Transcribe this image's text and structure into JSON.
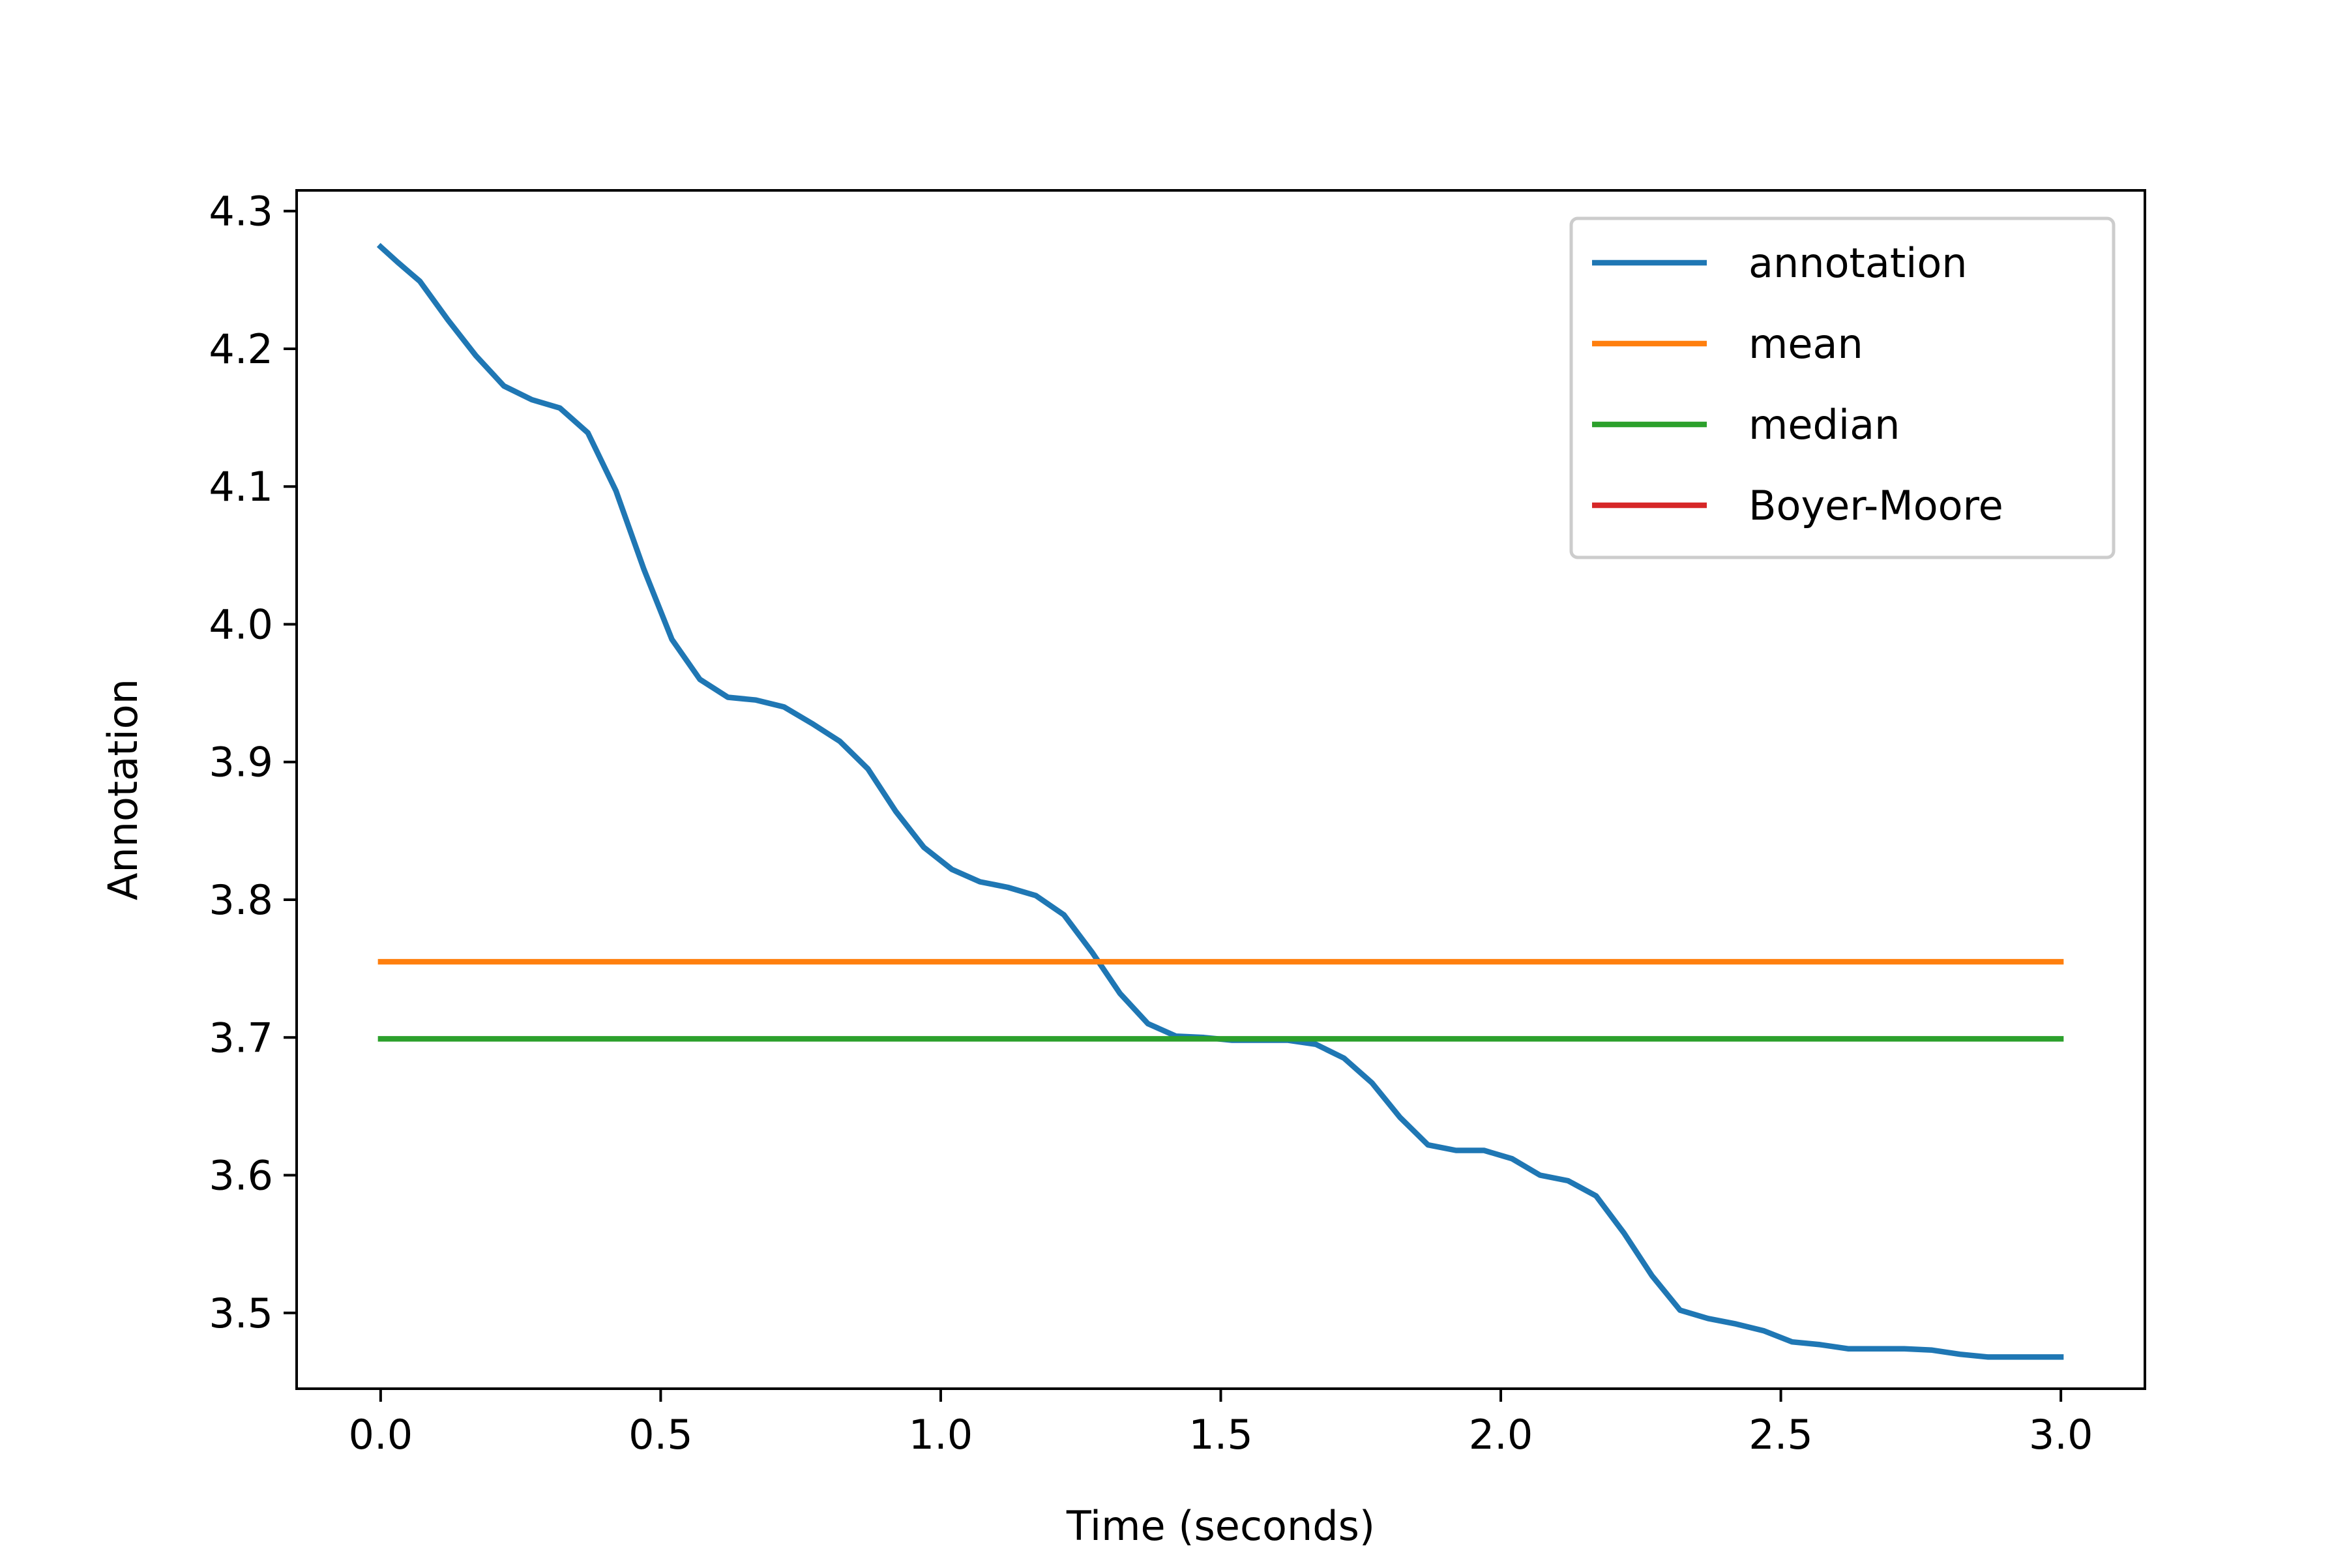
{
  "chart_data": {
    "type": "line",
    "xlabel": "Time (seconds)",
    "ylabel": "Annotation",
    "xlim": [
      -0.15,
      3.15
    ],
    "ylim": [
      3.445,
      4.315
    ],
    "xticks": [
      0.0,
      0.5,
      1.0,
      1.5,
      2.0,
      2.5,
      3.0
    ],
    "xtick_labels": [
      "0.0",
      "0.5",
      "1.0",
      "1.5",
      "2.0",
      "2.5",
      "3.0"
    ],
    "yticks": [
      3.5,
      3.6,
      3.7,
      3.8,
      3.9,
      4.0,
      4.1,
      4.2,
      4.3
    ],
    "ytick_labels": [
      "3.5",
      "3.6",
      "3.7",
      "3.8",
      "3.9",
      "4.0",
      "4.1",
      "4.2",
      "4.3"
    ],
    "grid": false,
    "legend_position": "top-right",
    "series": [
      {
        "name": "annotation",
        "color": "#1f77b4",
        "x": [
          0.0,
          0.03,
          0.07,
          0.12,
          0.17,
          0.22,
          0.27,
          0.32,
          0.37,
          0.42,
          0.47,
          0.52,
          0.57,
          0.62,
          0.67,
          0.72,
          0.77,
          0.82,
          0.87,
          0.92,
          0.97,
          1.02,
          1.07,
          1.12,
          1.17,
          1.22,
          1.27,
          1.32,
          1.37,
          1.42,
          1.47,
          1.52,
          1.57,
          1.62,
          1.67,
          1.72,
          1.77,
          1.82,
          1.87,
          1.92,
          1.97,
          2.02,
          2.07,
          2.12,
          2.17,
          2.22,
          2.27,
          2.32,
          2.37,
          2.42,
          2.47,
          2.52,
          2.57,
          2.62,
          2.67,
          2.72,
          2.77,
          2.82,
          2.87,
          2.92,
          2.97,
          3.0
        ],
        "y": [
          4.274,
          4.263,
          4.249,
          4.221,
          4.195,
          4.173,
          4.163,
          4.157,
          4.139,
          4.097,
          4.04,
          3.989,
          3.96,
          3.947,
          3.945,
          3.94,
          3.928,
          3.915,
          3.895,
          3.864,
          3.838,
          3.822,
          3.813,
          3.809,
          3.803,
          3.789,
          3.762,
          3.732,
          3.71,
          3.701,
          3.7,
          3.698,
          3.698,
          3.698,
          3.695,
          3.685,
          3.667,
          3.642,
          3.622,
          3.618,
          3.618,
          3.612,
          3.6,
          3.596,
          3.585,
          3.558,
          3.527,
          3.502,
          3.496,
          3.492,
          3.487,
          3.479,
          3.477,
          3.474,
          3.474,
          3.474,
          3.473,
          3.47,
          3.468,
          3.468,
          3.468,
          3.468
        ]
      },
      {
        "name": "mean",
        "color": "#ff7f0e",
        "x": [
          0.0,
          3.0
        ],
        "y": [
          3.755,
          3.755
        ]
      },
      {
        "name": "median",
        "color": "#2ca02c",
        "x": [
          0.0,
          3.0
        ],
        "y": [
          3.699,
          3.699
        ]
      },
      {
        "name": "Boyer-Moore",
        "color": "#d62728",
        "x": [],
        "y": []
      }
    ]
  }
}
